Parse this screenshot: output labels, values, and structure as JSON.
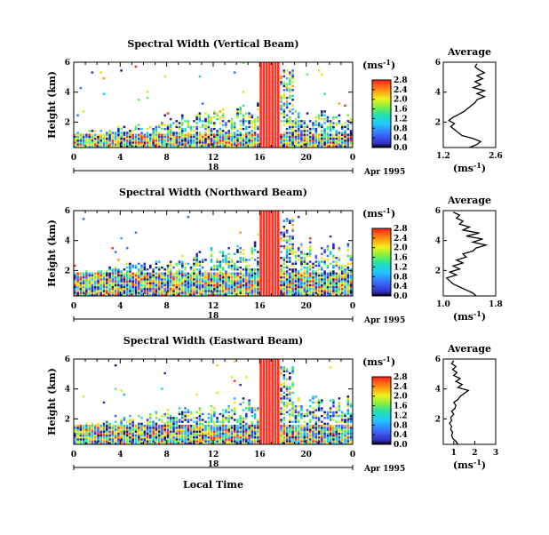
{
  "shared": {
    "ylabel": "Height (km)",
    "xlabel": "Local Time",
    "date_label": "Apr 1995",
    "day_label": "18",
    "cbar_unit": "(ms",
    "cbar_unit_sup": "-1",
    "cbar_unit_close": ")",
    "avg_title": "Average",
    "avg_xlabel": "(ms",
    "avg_xlabel_sup": "-1",
    "avg_xlabel_close": ")"
  },
  "chart_data": [
    {
      "type": "heatmap",
      "title": "Spectral Width (Vertical Beam)",
      "x_ticks": [
        "0",
        "4",
        "8",
        "12",
        "16",
        "20",
        "0"
      ],
      "y_ticks": [
        "2",
        "4",
        "6"
      ],
      "xlim": [
        0,
        24
      ],
      "ylim": [
        0.3,
        6
      ],
      "colorbar_ticks": [
        "0.0",
        "0.4",
        "0.8",
        "1.2",
        "1.6",
        "2.0",
        "2.4",
        "2.8"
      ],
      "clim": [
        0,
        2.8
      ],
      "profile": {
        "title": "Average",
        "x_ticks": [
          "1.2",
          "2.6"
        ],
        "xlim": [
          1.2,
          2.6
        ],
        "y_ticks": [
          "2",
          "4",
          "6"
        ],
        "ylim": [
          0.3,
          6
        ],
        "points": [
          [
            1.9,
            0.3
          ],
          [
            2.1,
            0.5
          ],
          [
            2.2,
            0.7
          ],
          [
            2.0,
            0.9
          ],
          [
            1.7,
            1.1
          ],
          [
            1.6,
            1.3
          ],
          [
            1.5,
            1.5
          ],
          [
            1.4,
            1.7
          ],
          [
            1.5,
            1.9
          ],
          [
            1.35,
            2.1
          ],
          [
            1.45,
            2.3
          ],
          [
            1.6,
            2.5
          ],
          [
            1.75,
            2.7
          ],
          [
            1.85,
            2.9
          ],
          [
            1.95,
            3.1
          ],
          [
            2.05,
            3.3
          ],
          [
            2.1,
            3.5
          ],
          [
            2.3,
            3.7
          ],
          [
            2.1,
            3.9
          ],
          [
            2.3,
            4.1
          ],
          [
            2.0,
            4.3
          ],
          [
            2.2,
            4.5
          ],
          [
            2.05,
            4.7
          ],
          [
            2.25,
            4.9
          ],
          [
            2.1,
            5.1
          ],
          [
            2.3,
            5.3
          ],
          [
            2.15,
            5.5
          ],
          [
            2.05,
            5.7
          ],
          [
            2.1,
            5.9
          ]
        ]
      },
      "heat": {
        "gap_start": 16.0,
        "gap_end": 17.5,
        "noise_top": 1.2,
        "sparse_top": 3.2
      }
    },
    {
      "type": "heatmap",
      "title": "Spectral Width (Northward Beam)",
      "x_ticks": [
        "0",
        "4",
        "8",
        "12",
        "16",
        "20",
        "0"
      ],
      "y_ticks": [
        "2",
        "4",
        "6"
      ],
      "xlim": [
        0,
        24
      ],
      "ylim": [
        0.3,
        6
      ],
      "colorbar_ticks": [
        "0.0",
        "0.4",
        "0.8",
        "1.2",
        "1.6",
        "2.0",
        "2.4",
        "2.8"
      ],
      "clim": [
        0,
        2.8
      ],
      "profile": {
        "title": "Average",
        "x_ticks": [
          "1.0",
          "1.8"
        ],
        "xlim": [
          1.0,
          1.8
        ],
        "y_ticks": [
          "2",
          "4",
          "6"
        ],
        "ylim": [
          0.3,
          6
        ],
        "points": [
          [
            1.5,
            0.3
          ],
          [
            1.45,
            0.5
          ],
          [
            1.35,
            0.7
          ],
          [
            1.25,
            0.9
          ],
          [
            1.15,
            1.1
          ],
          [
            1.1,
            1.3
          ],
          [
            1.05,
            1.5
          ],
          [
            1.2,
            1.7
          ],
          [
            1.1,
            1.9
          ],
          [
            1.25,
            2.1
          ],
          [
            1.15,
            2.3
          ],
          [
            1.3,
            2.5
          ],
          [
            1.2,
            2.7
          ],
          [
            1.35,
            2.9
          ],
          [
            1.3,
            3.1
          ],
          [
            1.45,
            3.3
          ],
          [
            1.5,
            3.5
          ],
          [
            1.65,
            3.7
          ],
          [
            1.45,
            3.9
          ],
          [
            1.6,
            4.1
          ],
          [
            1.35,
            4.3
          ],
          [
            1.55,
            4.5
          ],
          [
            1.3,
            4.7
          ],
          [
            1.4,
            4.9
          ],
          [
            1.25,
            5.1
          ],
          [
            1.3,
            5.3
          ],
          [
            1.2,
            5.5
          ],
          [
            1.25,
            5.7
          ],
          [
            1.15,
            5.9
          ]
        ]
      },
      "heat": {
        "gap_start": 16.0,
        "gap_end": 17.5,
        "noise_top": 1.8,
        "sparse_top": 4.0
      }
    },
    {
      "type": "heatmap",
      "title": "Spectral Width (Eastward Beam)",
      "x_ticks": [
        "0",
        "4",
        "8",
        "12",
        "16",
        "20",
        "0"
      ],
      "y_ticks": [
        "2",
        "4",
        "6"
      ],
      "xlim": [
        0,
        24
      ],
      "ylim": [
        0.3,
        6
      ],
      "colorbar_ticks": [
        "0.0",
        "0.4",
        "0.8",
        "1.2",
        "1.6",
        "2.0",
        "2.4",
        "2.8"
      ],
      "clim": [
        0,
        2.8
      ],
      "profile": {
        "title": "Average",
        "x_ticks": [
          "1",
          "2",
          "3"
        ],
        "xlim": [
          0.5,
          3
        ],
        "y_ticks": [
          "2",
          "4",
          "6"
        ],
        "ylim": [
          0.3,
          6
        ],
        "points": [
          [
            1.2,
            0.3
          ],
          [
            1.1,
            0.5
          ],
          [
            0.95,
            0.7
          ],
          [
            0.9,
            0.9
          ],
          [
            0.95,
            1.1
          ],
          [
            0.85,
            1.3
          ],
          [
            0.9,
            1.5
          ],
          [
            0.8,
            1.7
          ],
          [
            0.9,
            1.9
          ],
          [
            0.85,
            2.1
          ],
          [
            1.0,
            2.3
          ],
          [
            0.9,
            2.5
          ],
          [
            1.05,
            2.7
          ],
          [
            1.1,
            2.9
          ],
          [
            1.0,
            3.1
          ],
          [
            1.2,
            3.3
          ],
          [
            1.3,
            3.5
          ],
          [
            1.5,
            3.7
          ],
          [
            1.7,
            3.9
          ],
          [
            1.2,
            4.1
          ],
          [
            1.4,
            4.3
          ],
          [
            1.1,
            4.5
          ],
          [
            1.3,
            4.7
          ],
          [
            1.0,
            4.9
          ],
          [
            1.15,
            5.1
          ],
          [
            0.95,
            5.3
          ],
          [
            1.1,
            5.5
          ],
          [
            0.9,
            5.7
          ],
          [
            1.0,
            5.9
          ]
        ]
      },
      "heat": {
        "gap_start": 16.0,
        "gap_end": 17.5,
        "noise_top": 1.5,
        "sparse_top": 3.6
      }
    }
  ]
}
